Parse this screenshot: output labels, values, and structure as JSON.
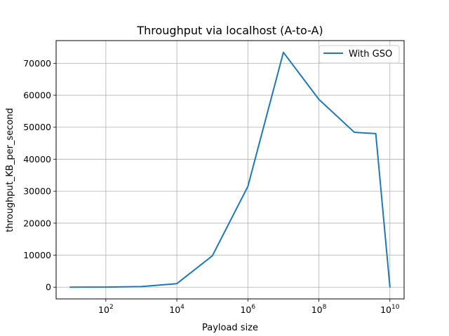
{
  "chart_data": {
    "type": "line",
    "title": "Throughput via localhost (A-to-A)",
    "xlabel": "Payload size",
    "ylabel": "throughput_KB_per_second",
    "xscale": "log",
    "xlim": [
      3.98,
      25100000000
    ],
    "ylim": [
      -3670,
      77080
    ],
    "grid": true,
    "legend_position": "upper right",
    "x_ticks": [
      {
        "value": 100,
        "base": "10",
        "exp": "2"
      },
      {
        "value": 10000,
        "base": "10",
        "exp": "4"
      },
      {
        "value": 1000000,
        "base": "10",
        "exp": "6"
      },
      {
        "value": 100000000,
        "base": "10",
        "exp": "8"
      },
      {
        "value": 10000000000,
        "base": "10",
        "exp": "10"
      }
    ],
    "y_ticks": [
      {
        "value": 0,
        "label": "0"
      },
      {
        "value": 10000,
        "label": "10000"
      },
      {
        "value": 20000,
        "label": "20000"
      },
      {
        "value": 30000,
        "label": "30000"
      },
      {
        "value": 40000,
        "label": "40000"
      },
      {
        "value": 50000,
        "label": "50000"
      },
      {
        "value": 60000,
        "label": "60000"
      },
      {
        "value": 70000,
        "label": "70000"
      }
    ],
    "series": [
      {
        "name": "With GSO",
        "color": "#1f77b4",
        "x": [
          10,
          100,
          1000,
          10000,
          100000,
          1000000,
          10000000,
          100000000,
          1000000000,
          4000000000,
          10000000000
        ],
        "y": [
          0,
          20,
          200,
          1100,
          9800,
          31500,
          73400,
          58700,
          48400,
          48000,
          100
        ]
      }
    ]
  }
}
